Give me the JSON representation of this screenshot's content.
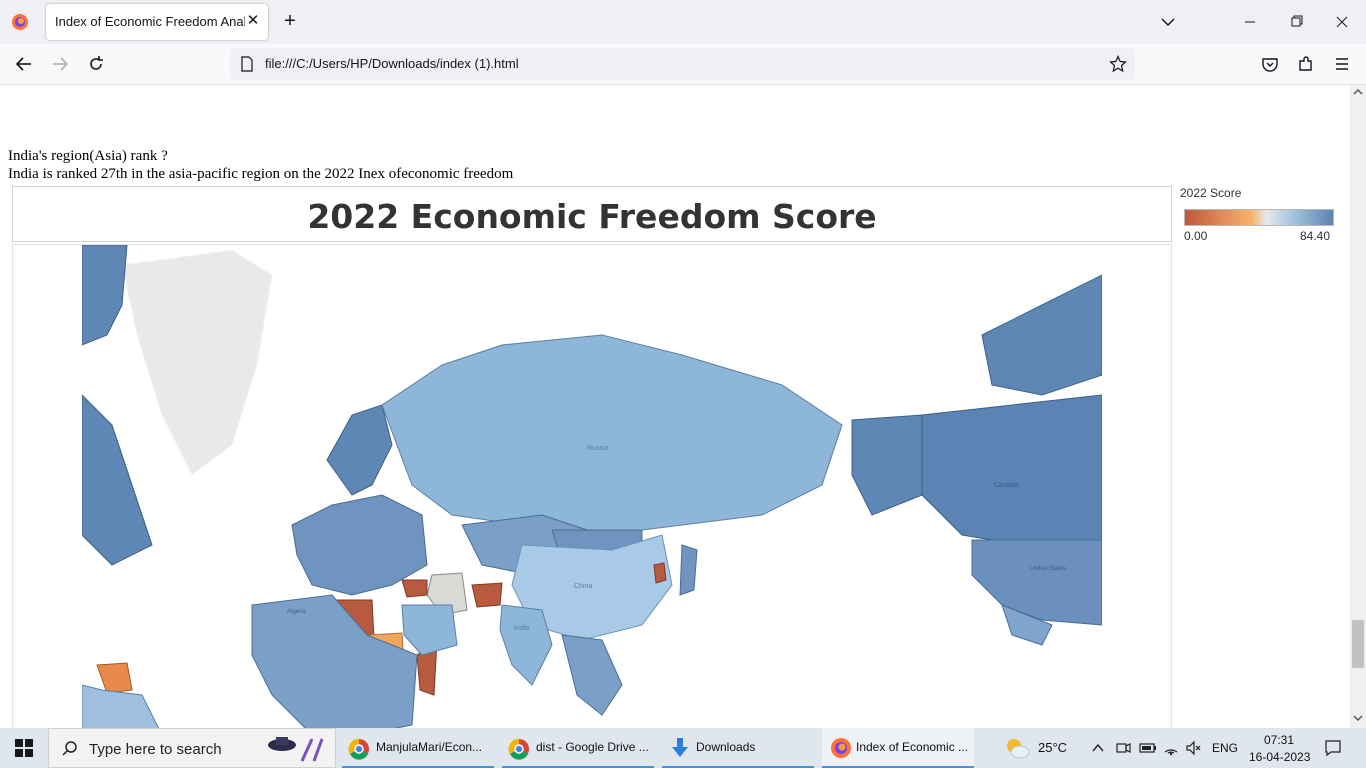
{
  "browser": {
    "tab_title": "Index of Economic Freedom Analysi",
    "url": "file:///C:/Users/HP/Downloads/index (1).html"
  },
  "page": {
    "question": "India's region(Asia) rank ?",
    "answer": "India is ranked 27th in the asia-pacific region on the 2022 Inex ofeconomic freedom",
    "chart_title": "2022 Economic Freedom Score",
    "legend": {
      "title": "2022 Score",
      "min": "0.00",
      "max": "84.40",
      "colors": {
        "low": "#c0563a",
        "mid": "#f7b36a",
        "neutral": "#e4e8ec",
        "high": "#5b83b3"
      }
    },
    "map_labels": [
      "Russia",
      "China",
      "India",
      "Canada",
      "United States",
      "Algeria"
    ]
  },
  "taskbar": {
    "search_placeholder": "Type here to search",
    "apps": [
      {
        "label": "ManjulaMari/Econ...",
        "icon": "chrome-icon"
      },
      {
        "label": "dist - Google Drive ...",
        "icon": "chrome-icon"
      },
      {
        "label": "Downloads",
        "icon": "download-arrow-icon"
      },
      {
        "label": "Index of Economic ...",
        "icon": "firefox-icon"
      }
    ],
    "weather": "25°C",
    "language": "ENG",
    "time": "07:31",
    "date": "16-04-2023"
  }
}
